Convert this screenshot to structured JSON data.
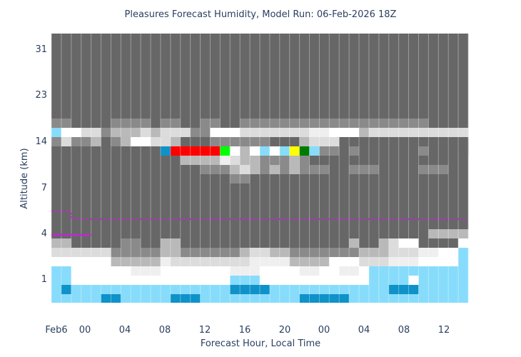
{
  "chart_data": {
    "type": "heatmap",
    "title": "Pleasures Forecast Humidity, Model Run: 06-Feb-2026 18Z",
    "xlabel": "Forecast Hour, Local Time",
    "ylabel": "Altitude (km)",
    "x_ticks": [
      "Feb6",
      "00",
      "04",
      "08",
      "12",
      "16",
      "20",
      "00",
      "04",
      "08",
      "12"
    ],
    "y_ticks": [
      "1",
      "4",
      "7",
      "14",
      "23",
      "31"
    ],
    "columns": 42,
    "grid": true,
    "colors": {
      "dark": "#676767",
      "mid": "#8a8a8a",
      "light_gray": "#b9b9b9",
      "pale": "#dcdcdc",
      "very_pale": "#efefef",
      "white": "#ffffff",
      "light_blue": "#87dcfb",
      "dark_blue": "#0e92c8",
      "red": "#ff0000",
      "green": "#00ff00",
      "yellow": "#ffff00",
      "dark_green": "#007a00",
      "freezing_level": "#c026d3"
    },
    "rows": {
      "r_high": "DDDDDDDDDDDDDDDDDDDDDDDDDDDDDDDDDDDDDDDDDD",
      "r15": "MMDDDDMMMMDMMDDMMDDMMMMMMMMMMMMMMMMMMMDDDD",
      "r14": "BWWPPMLLLPLPPPMMWWWPPPPPPPVVWWWLPPPPPPPPPP",
      "r13": "MPMMLDMLWWPPLDDDMMMMMMDDDLPPPDDDDDDDDDDDDD",
      "r12": "DDLMLMLMMVPLLMMMMMLMMMMMMLMMDDMDDDDDDDDDDD",
      "r11": "DDDDDDDDDDDCRRRRRGWLWBWBYKBMMDMDDDDDDMDDDD",
      "r10": "DDDDDDDDDDDDDLLLLVPLLMMMLMDDDDDDDDDDDDDDDD",
      "r9": "DDDDDDDDDDDDDDDMMMLPLMLMLMMMDDMMMDDDDMMMDD",
      "r8": "DDDDDDDDDDDDDDDDDDMMDDDDDDDDDDDDDDDDDDDDDD",
      "r_mid": "DDDDDDDDDDDDDDDDDDDDDDDDDDDDDDDDDDDDDDDDDD",
      "r4a": "DDDDDDDDDDDDDDDDDDDDDDDDDDDDDDDDDDDDDDLLLL",
      "r3": "LLDDDDDMMDDLLDDDDDDDDDDDDDDDDDLDDLPWWDDDDW",
      "r2": "PPPPPPMMMMMLLMMMMMMLPPLLMMMMMMMLLLPPPVVWWB",
      "r2b": "WWWWWWLLLLLVPPPPPPPPVVVVLLLLWWWPPPVVVWWWWB",
      "r1": "BBWWWWWWVVVWWWWWWWVVVWWWWVVWWVVWBBBBBBBBBB",
      "r1b": "BBWWWWWWWWWWWWWWWWBBBWWWWWWWWWWWBBBBWBBBBB",
      "r0a": "BCBBBBBBBBBBBBBBBBCCCCBBBBBBBBBBBBCCCBBBBB",
      "r0b": "BBBBBCCBBBBBCCCBBBBBBBBBBCCCCCBBBBBBBBBBBB",
      "r0c": "BBBBBBBBBBBBBBBBBBBBBBBBBBBBBBBBBBBBBBBBBB",
      "r0d": "BWBBBBBBBBBBBBBBBBBBBBBBBBBBBBBBBBBBBBWWWW"
    },
    "freezing_level_km": [
      5.6,
      5.6,
      5.2,
      5.2,
      5.2,
      5.2,
      5.2,
      5.2,
      5.2,
      5.2,
      5.2,
      5.2,
      5.2,
      5.2,
      5.2,
      5.2,
      5.2,
      5.2,
      5.2,
      5.2,
      5.2,
      5.2,
      5.2,
      5.2,
      5.2,
      5.2,
      5.2,
      5.2,
      5.2,
      5.2,
      5.2,
      5.2,
      5.2,
      5.2,
      5.2,
      5.2,
      5.2,
      5.2,
      5.2,
      5.2,
      5.2,
      5.2
    ],
    "secondary_level_km": [
      4.0,
      4.0,
      4.0,
      4.0
    ]
  }
}
